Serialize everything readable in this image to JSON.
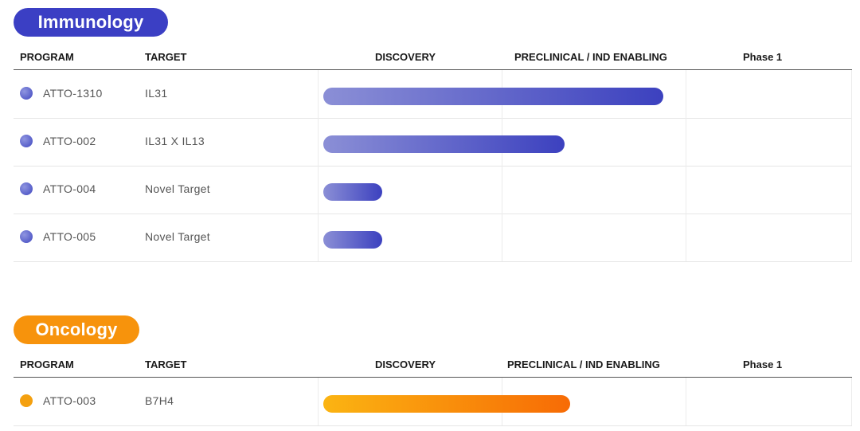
{
  "colors": {
    "immunology": "#3b3fc4",
    "oncology": "#f7930c"
  },
  "headers": {
    "program": "PROGRAM",
    "target": "TARGET",
    "stages": [
      "DISCOVERY",
      "PRECLINICAL / IND ENABLING",
      "Phase 1"
    ]
  },
  "chart_data": [
    {
      "type": "bar",
      "title": "Immunology",
      "stages": [
        "DISCOVERY",
        "PRECLINICAL / IND ENABLING",
        "Phase 1"
      ],
      "programs": [
        {
          "name": "ATTO-1310",
          "target": "IL31",
          "progress": 1.85
        },
        {
          "name": "ATTO-002",
          "target": "IL31 X IL13",
          "progress": 1.31
        },
        {
          "name": "ATTO-004",
          "target": "Novel Target",
          "progress": 0.32
        },
        {
          "name": "ATTO-005",
          "target": "Novel Target",
          "progress": 0.32
        }
      ]
    },
    {
      "type": "bar",
      "title": "Oncology",
      "stages": [
        "DISCOVERY",
        "PRECLINICAL / IND ENABLING",
        "Phase 1"
      ],
      "programs": [
        {
          "name": "ATTO-003",
          "target": "B7H4",
          "progress": 1.34
        }
      ]
    }
  ]
}
